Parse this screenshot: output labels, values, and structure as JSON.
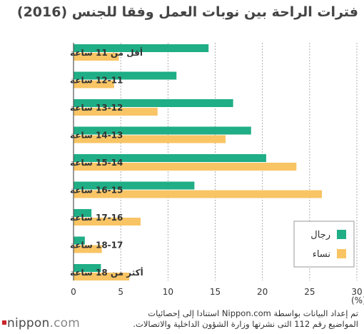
{
  "title": "فترات الراحة بين نوبات العمل وفقا للجنس (2016)",
  "unit_label": "(%)",
  "source_note": "تم إعداد البيانات بواسطة Nippon.com استنادا إلى إحصائيات المواضيع رقم 112 التى نشرتها وزارة الشؤون الداخلية والاتصالات.",
  "logo": {
    "brand": "nippon",
    "suffix": ".com"
  },
  "colors": {
    "men": "#1fae86",
    "women": "#f9c464",
    "axis": "#555555"
  },
  "chart_data": {
    "type": "bar",
    "orientation": "horizontal",
    "categories": [
      "أقل من 11 ساعة",
      "12-11 ساعة",
      "13-12 ساعة",
      "14-13 ساعة",
      "15-14 ساعة",
      "16-15 ساعة",
      "17-16 ساعة",
      "18-17 ساعة",
      "أكثر من 18 ساعة"
    ],
    "series": [
      {
        "name": "رجال",
        "values": [
          14.3,
          10.9,
          16.9,
          18.8,
          20.4,
          12.8,
          1.9,
          1.2,
          2.9
        ]
      },
      {
        "name": "نساء",
        "values": [
          4.8,
          4.3,
          8.9,
          16.1,
          23.6,
          26.3,
          7.1,
          3.0,
          5.9
        ]
      }
    ],
    "xlim": [
      0,
      30
    ],
    "xticks": [
      0,
      5,
      10,
      15,
      20,
      25,
      30
    ],
    "grid": true,
    "legend_position": "bottom-right"
  }
}
